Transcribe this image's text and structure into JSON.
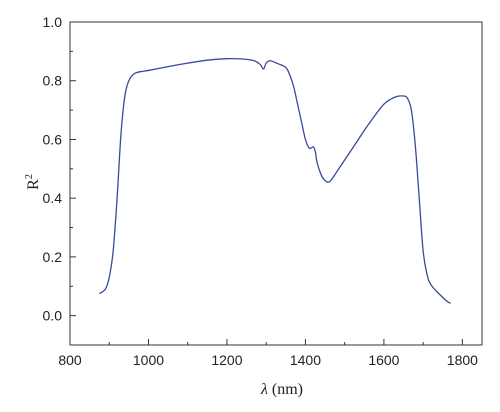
{
  "chart_data": {
    "type": "line",
    "xlabel_symbol": "λ",
    "xlabel_unit": " (nm)",
    "ylabel_base": "R",
    "ylabel_sup": "2",
    "xlim": [
      800,
      1850
    ],
    "ylim": [
      -0.1,
      1.0
    ],
    "x_ticks": [
      800,
      1000,
      1200,
      1400,
      1600,
      1800
    ],
    "x_tick_labels": [
      "800",
      "1000",
      "1200",
      "1400",
      "1600",
      "1800"
    ],
    "y_ticks": [
      0.0,
      0.2,
      0.4,
      0.6,
      0.8,
      1.0
    ],
    "y_tick_labels": [
      "0.0",
      "0.2",
      "0.4",
      "0.6",
      "0.8",
      "1.0"
    ],
    "grid": false,
    "line_color": "#3a4a9a",
    "series": [
      {
        "x": [
          875,
          890,
          900,
          910,
          920,
          930,
          940,
          950,
          960,
          970,
          985,
          1000,
          1050,
          1100,
          1150,
          1200,
          1240,
          1270,
          1285,
          1293,
          1300,
          1310,
          1330,
          1350,
          1360,
          1370,
          1380,
          1390,
          1400,
          1410,
          1420,
          1425,
          1430,
          1440,
          1450,
          1460,
          1470,
          1480,
          1500,
          1530,
          1560,
          1600,
          1630,
          1650,
          1660,
          1670,
          1680,
          1690,
          1700,
          1710,
          1720,
          1740,
          1760,
          1770
        ],
        "y": [
          0.075,
          0.09,
          0.13,
          0.22,
          0.4,
          0.62,
          0.75,
          0.8,
          0.82,
          0.828,
          0.832,
          0.835,
          0.848,
          0.86,
          0.87,
          0.875,
          0.874,
          0.868,
          0.855,
          0.84,
          0.86,
          0.868,
          0.858,
          0.845,
          0.82,
          0.78,
          0.72,
          0.66,
          0.6,
          0.57,
          0.575,
          0.56,
          0.52,
          0.48,
          0.46,
          0.455,
          0.47,
          0.49,
          0.53,
          0.59,
          0.65,
          0.72,
          0.745,
          0.748,
          0.74,
          0.7,
          0.58,
          0.4,
          0.22,
          0.14,
          0.105,
          0.075,
          0.05,
          0.042
        ]
      }
    ]
  }
}
